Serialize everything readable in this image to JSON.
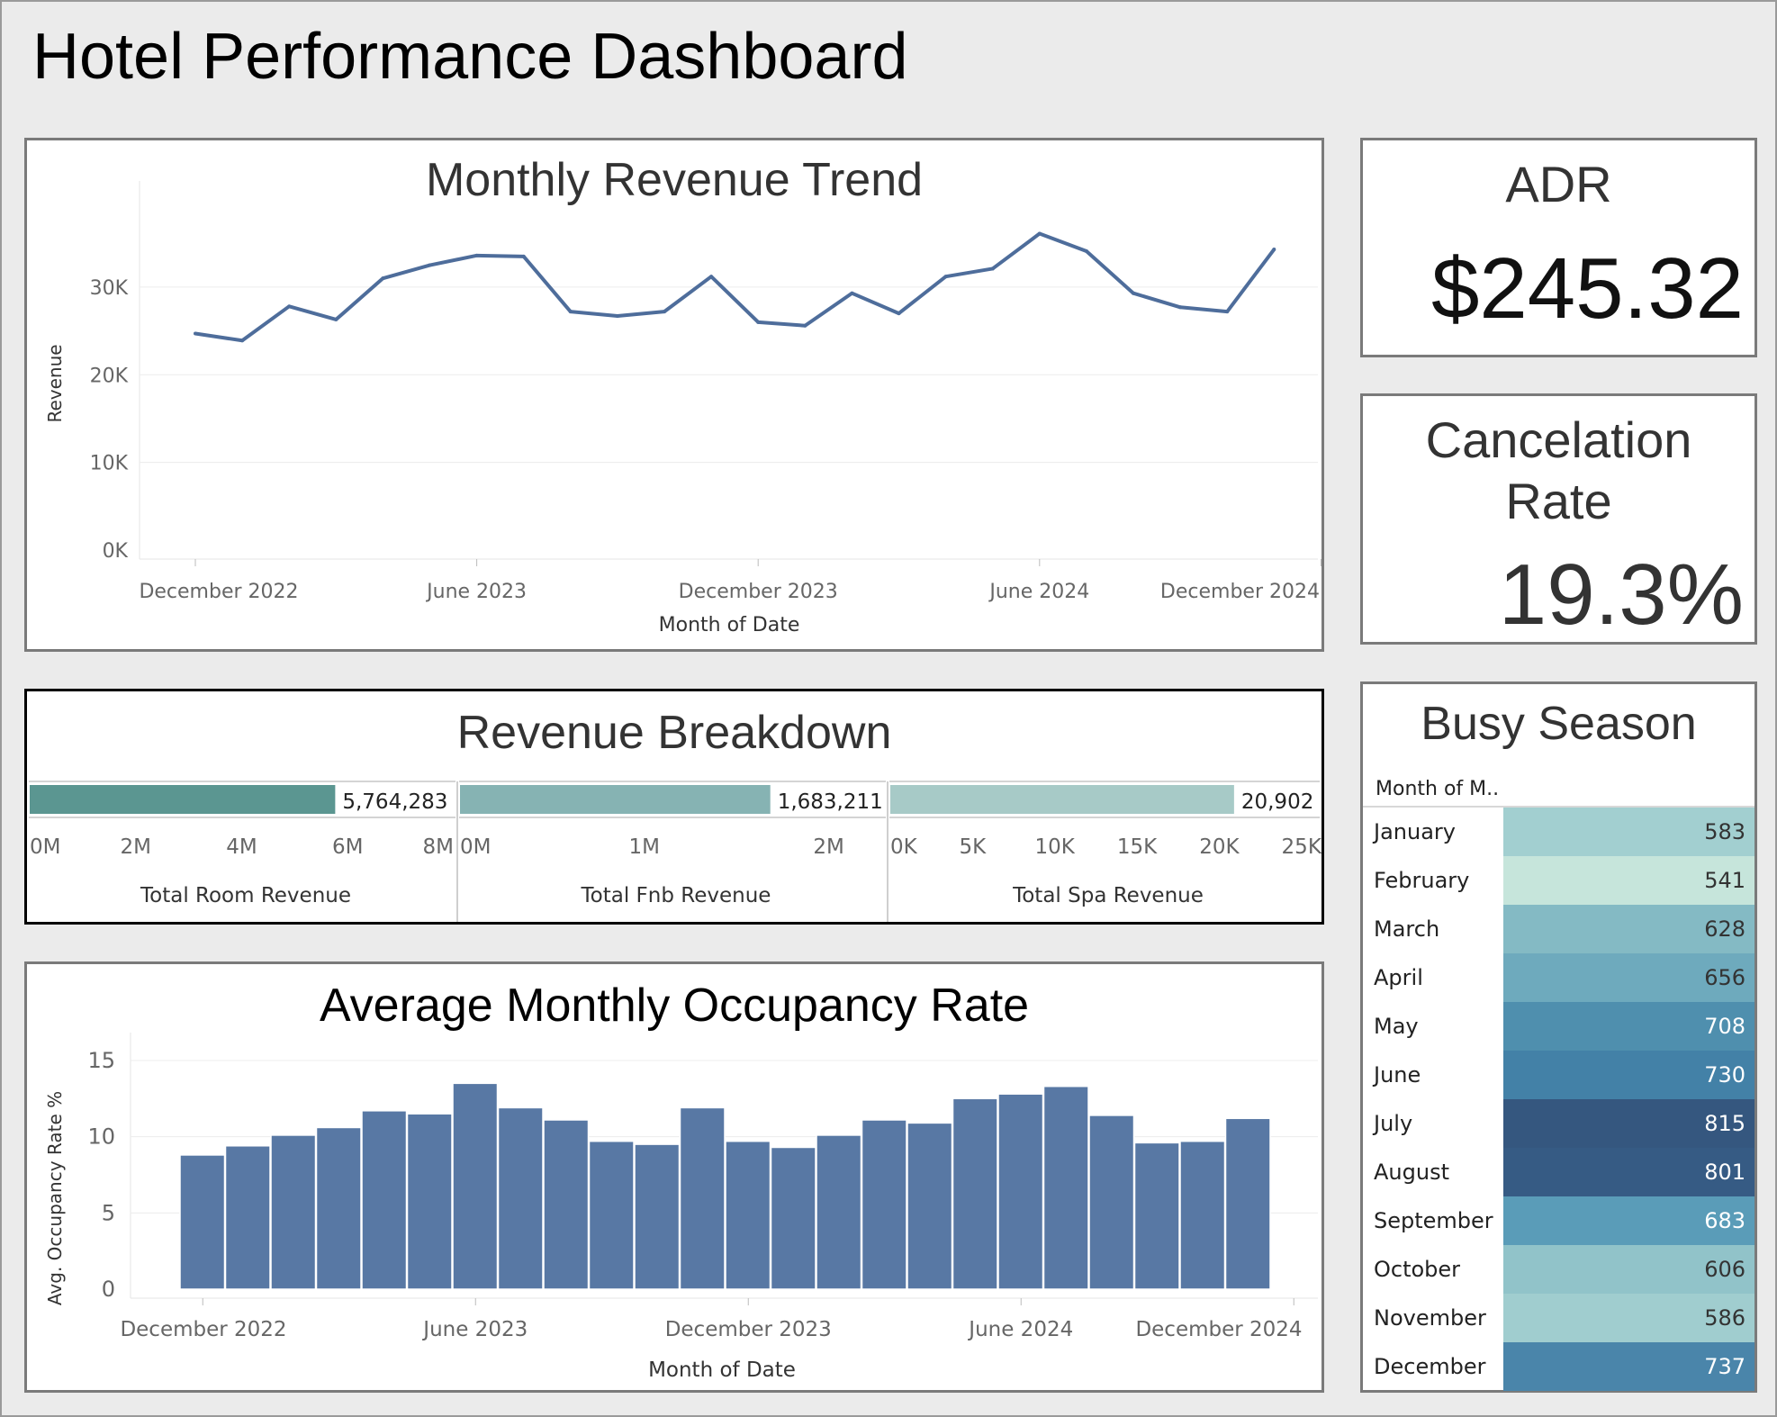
{
  "page": {
    "title": "Hotel Performance Dashboard"
  },
  "revenue_trend": {
    "title": "Monthly Revenue Trend",
    "chart_data": {
      "type": "line",
      "title": "Monthly Revenue Trend",
      "xlabel": "Month of Date",
      "ylabel": "Revenue",
      "x_ticks": [
        "December 2022",
        "June 2023",
        "December 2023",
        "June 2024",
        "December 2024"
      ],
      "y_ticks": [
        "0K",
        "10K",
        "20K",
        "30K"
      ],
      "ylim": [
        0,
        38000
      ],
      "series": [
        {
          "name": "Revenue",
          "color": "#4e6d9b",
          "values": [
            24700,
            23900,
            27800,
            26300,
            31000,
            32500,
            33600,
            33500,
            27200,
            26700,
            27200,
            31200,
            26000,
            25600,
            29300,
            27000,
            31200,
            32100,
            36100,
            34100,
            29300,
            27700,
            27200,
            34300
          ]
        }
      ]
    }
  },
  "adr": {
    "title": "ADR",
    "value": "$245.32"
  },
  "cancelation": {
    "title_line1": "Cancelation",
    "title_line2": "Rate",
    "value": "19.3%"
  },
  "revenue_breakdown": {
    "title": "Revenue Breakdown",
    "chart_data": [
      {
        "type": "bar",
        "title": "Total Room Revenue",
        "value": 5764283,
        "label": "5,764,283",
        "color": "#5b9691",
        "xlim": [
          0,
          8000000
        ],
        "ticks": [
          "0M",
          "2M",
          "4M",
          "6M",
          "8M"
        ]
      },
      {
        "type": "bar",
        "title": "Total Fnb Revenue",
        "value": 1683211,
        "label": "1,683,211",
        "color": "#86b3b3",
        "xlim": [
          0,
          2300000
        ],
        "ticks": [
          "0M",
          "1M",
          "2M"
        ]
      },
      {
        "type": "bar",
        "title": "Total Spa Revenue",
        "value": 20902,
        "label": "20,902",
        "color": "#a7cac7",
        "xlim": [
          0,
          26000
        ],
        "ticks": [
          "0K",
          "5K",
          "10K",
          "15K",
          "20K",
          "25K"
        ]
      }
    ]
  },
  "occupancy": {
    "title": "Average Monthly Occupancy Rate",
    "chart_data": {
      "type": "bar",
      "title": "Average Monthly Occupancy Rate",
      "xlabel": "Month of Date",
      "ylabel": "Avg. Occupancy Rate %",
      "x_ticks": [
        "December 2022",
        "June 2023",
        "December 2023",
        "June 2024",
        "December 2024"
      ],
      "y_ticks": [
        "0",
        "5",
        "10",
        "15"
      ],
      "ylim": [
        0,
        16
      ],
      "color": "#5878a4",
      "values": [
        8.8,
        9.4,
        10.1,
        10.6,
        11.7,
        11.5,
        13.5,
        11.9,
        11.1,
        9.7,
        9.5,
        11.9,
        9.7,
        9.3,
        10.1,
        11.1,
        10.9,
        12.5,
        12.8,
        13.3,
        11.4,
        9.6,
        9.7,
        11.2
      ]
    }
  },
  "busy_season": {
    "title": "Busy Season",
    "column_header": "Month of M..",
    "chart_data": {
      "type": "heatmap",
      "categories": [
        "January",
        "February",
        "March",
        "April",
        "May",
        "June",
        "July",
        "August",
        "September",
        "October",
        "November",
        "December"
      ],
      "values": [
        583,
        541,
        628,
        656,
        708,
        730,
        815,
        801,
        683,
        606,
        586,
        737
      ],
      "colors": [
        "#a2cfd0",
        "#c6e5db",
        "#84bac4",
        "#6eaabd",
        "#4f8fae",
        "#4381a7",
        "#35577f",
        "#365b84",
        "#5a9cb8",
        "#91c3c9",
        "#a0cdcf",
        "#4a85aa"
      ]
    }
  }
}
